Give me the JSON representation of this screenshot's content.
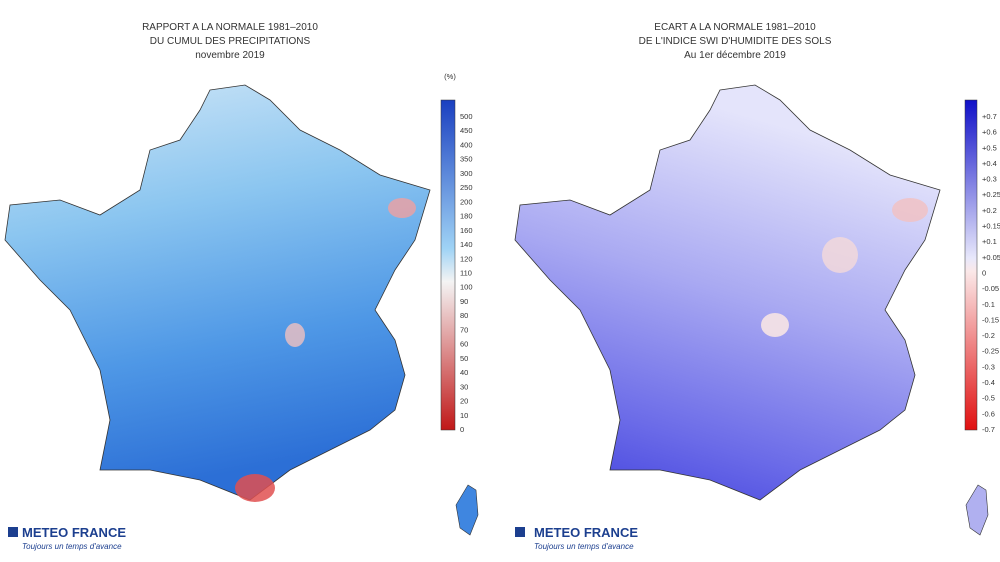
{
  "maps": [
    {
      "title": [
        "RAPPORT A LA NORMALE 1981–2010",
        "DU CUMUL DES PRECIPITATIONS",
        "novembre 2019"
      ],
      "unit": "(%)",
      "scale": [
        "500",
        "450",
        "400",
        "350",
        "300",
        "250",
        "200",
        "180",
        "160",
        "140",
        "120",
        "110",
        "100",
        "90",
        "80",
        "70",
        "60",
        "50",
        "40",
        "30",
        "20",
        "10",
        "0"
      ],
      "logo": "METEO FRANCE",
      "slogan": "Toujours un temps d'avance"
    },
    {
      "title": [
        "ECART A LA NORMALE 1981–2010",
        "DE L'INDICE SWI D'HUMIDITE DES SOLS",
        "Au 1er décembre 2019"
      ],
      "scale": [
        "+0.7",
        "+0.6",
        "+0.5",
        "+0.4",
        "+0.3",
        "+0.25",
        "+0.2",
        "+0.15",
        "+0.1",
        "+0.05",
        "0",
        "-0.05",
        "-0.1",
        "-0.15",
        "-0.2",
        "-0.25",
        "-0.3",
        "-0.4",
        "-0.5",
        "-0.6",
        "-0.7"
      ],
      "logo": "METEO FRANCE",
      "slogan": "Toujours un temps d'avance"
    }
  ]
}
